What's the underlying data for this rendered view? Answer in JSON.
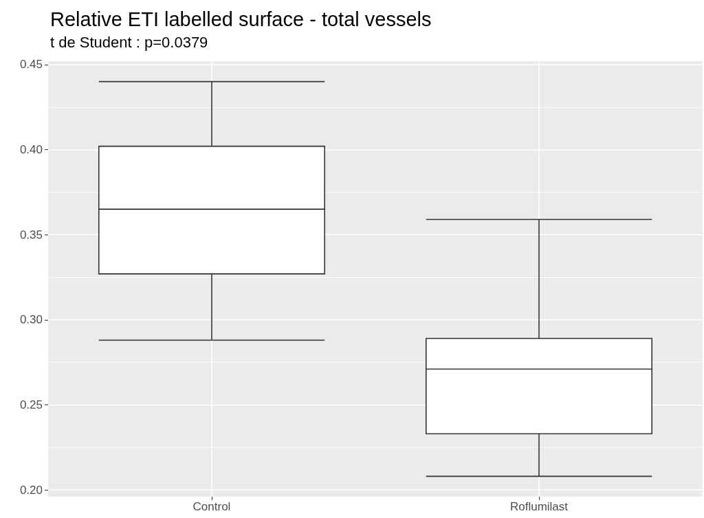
{
  "chart_data": {
    "type": "box",
    "title": "Relative ETI labelled surface - total vessels",
    "subtitle": "t de Student : p=0.0379",
    "categories": [
      "Control",
      "Roflumilast"
    ],
    "boxes": [
      {
        "low": 0.288,
        "q1": 0.327,
        "median": 0.365,
        "q3": 0.402,
        "high": 0.44
      },
      {
        "low": 0.208,
        "q1": 0.233,
        "median": 0.271,
        "q3": 0.289,
        "high": 0.359
      }
    ],
    "ylim": [
      0.196,
      0.452
    ],
    "yticks": [
      {
        "value": 0.2,
        "label": "0.20"
      },
      0.25,
      {
        "value": 0.3,
        "label": "0.30"
      },
      0.35,
      {
        "value": 0.4,
        "label": "0.40"
      },
      0.45
    ],
    "grid": true
  }
}
